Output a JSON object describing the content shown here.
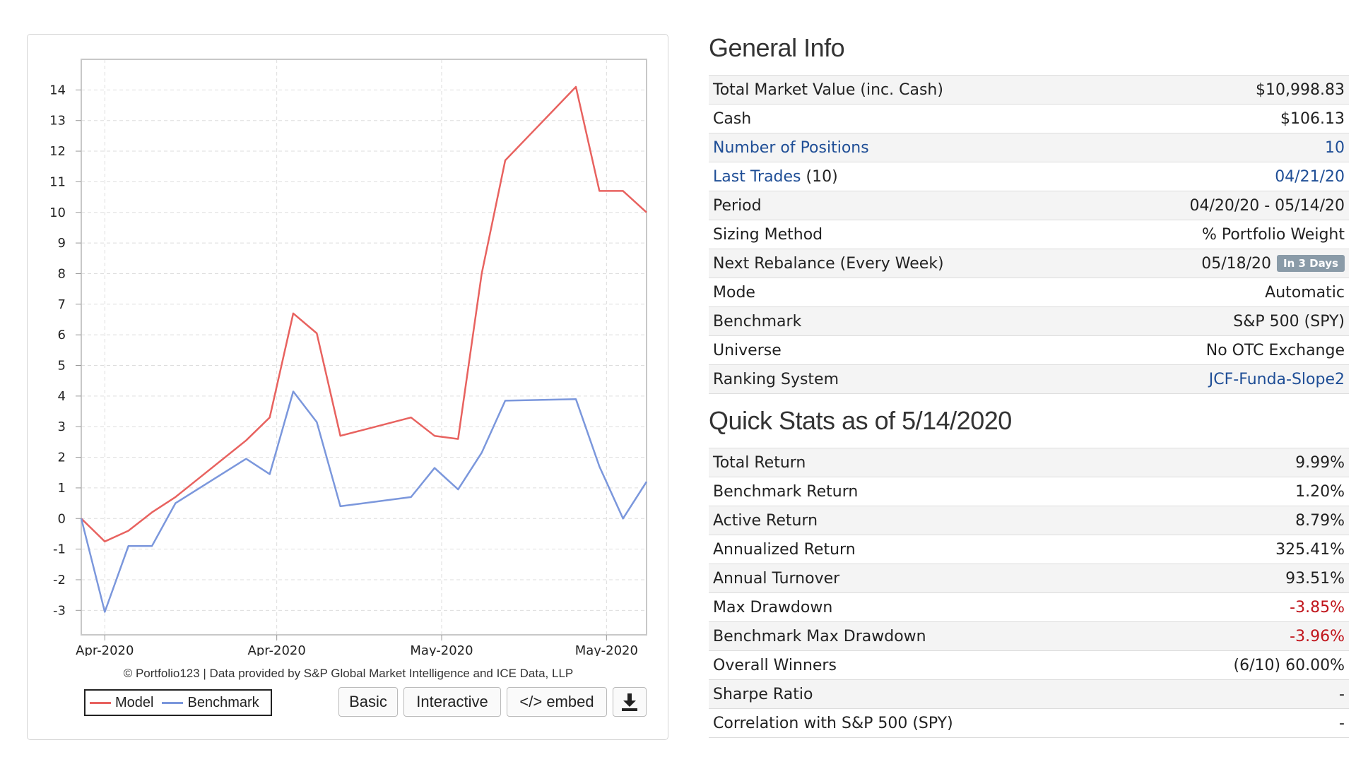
{
  "chart_data": {
    "type": "line",
    "x_labels": [
      "Apr-2020",
      "Apr-2020",
      "May-2020",
      "May-2020"
    ],
    "ylim": [
      -3.8,
      15
    ],
    "yticks": [
      14,
      13,
      12,
      11,
      10,
      9,
      8,
      7,
      6,
      5,
      4,
      3,
      2,
      1,
      0,
      -1,
      -2,
      -3
    ],
    "grid": true,
    "legend_placement": "bottom-left",
    "x_index": [
      0,
      1,
      2,
      3,
      4,
      5,
      6,
      7,
      8,
      9,
      10,
      11,
      12,
      13,
      14,
      15,
      16,
      17,
      18,
      19,
      20,
      21,
      22,
      23,
      24
    ],
    "series": [
      {
        "name": "Model",
        "color": "#e8625f",
        "values": [
          0.0,
          -0.75,
          -0.4,
          0.2,
          0.7,
          null,
          1.9,
          2.55,
          3.3,
          6.7,
          6.05,
          2.7,
          2.95,
          3.3,
          2.7,
          2.6,
          8.0,
          11.7,
          12.9,
          14.0,
          14.1,
          10.7,
          10.7,
          10.0,
          null
        ],
        "points": [
          [
            0,
            0.0
          ],
          [
            1,
            -0.75
          ],
          [
            2,
            -0.4
          ],
          [
            3,
            0.2
          ],
          [
            4,
            0.7
          ],
          [
            7,
            2.55
          ],
          [
            8,
            3.3
          ],
          [
            9,
            6.7
          ],
          [
            10,
            6.05
          ],
          [
            11,
            2.7
          ],
          [
            14,
            3.3
          ],
          [
            15,
            2.7
          ],
          [
            16,
            2.6
          ],
          [
            17,
            8.0
          ],
          [
            18,
            11.7
          ],
          [
            21,
            14.1
          ],
          [
            22,
            10.7
          ],
          [
            23,
            10.7
          ],
          [
            24,
            10.0
          ]
        ]
      },
      {
        "name": "Benchmark",
        "color": "#7b97dc",
        "points": [
          [
            0,
            0.0
          ],
          [
            1,
            -3.05
          ],
          [
            2,
            -0.9
          ],
          [
            3,
            -0.9
          ],
          [
            4,
            0.5
          ],
          [
            7,
            1.95
          ],
          [
            8,
            1.45
          ],
          [
            9,
            4.15
          ],
          [
            10,
            3.15
          ],
          [
            11,
            0.4
          ],
          [
            14,
            0.7
          ],
          [
            15,
            1.65
          ],
          [
            16,
            0.95
          ],
          [
            17,
            2.15
          ],
          [
            18,
            3.85
          ],
          [
            21,
            3.9
          ],
          [
            22,
            1.7
          ],
          [
            23,
            0.0
          ],
          [
            24,
            1.2
          ]
        ]
      }
    ]
  },
  "chart": {
    "credit": "© Portfolio123 | Data provided by S&P Global Market Intelligence and ICE Data, LLP",
    "legend": {
      "model": "Model",
      "benchmark": "Benchmark"
    },
    "buttons": {
      "basic": "Basic",
      "interactive": "Interactive",
      "embed": "</> embed"
    }
  },
  "general_info": {
    "title": "General Info",
    "rows": [
      {
        "label": "Total Market Value (inc. Cash)",
        "value": "$10,998.83"
      },
      {
        "label": "Cash",
        "value": "$106.13"
      },
      {
        "label": "Number of Positions",
        "value": "10"
      },
      {
        "label": "Last Trades",
        "label_suffix": " (10)",
        "value": "04/21/20"
      },
      {
        "label": "Period",
        "value": "04/20/20 - 05/14/20"
      },
      {
        "label": "Sizing Method",
        "value": "% Portfolio Weight"
      },
      {
        "label": "Next Rebalance (Every Week)",
        "value": "05/18/20",
        "badge": "In 3 Days"
      },
      {
        "label": "Mode",
        "value": "Automatic"
      },
      {
        "label": "Benchmark",
        "value": "S&P 500 (SPY)"
      },
      {
        "label": "Universe",
        "value": "No OTC Exchange"
      },
      {
        "label": "Ranking System",
        "value": "JCF-Funda-Slope2"
      }
    ]
  },
  "quick_stats": {
    "title": "Quick Stats as of 5/14/2020",
    "rows": [
      {
        "label": "Total Return",
        "value": "9.99%"
      },
      {
        "label": "Benchmark Return",
        "value": "1.20%"
      },
      {
        "label": "Active Return",
        "value": "8.79%"
      },
      {
        "label": "Annualized Return",
        "value": "325.41%"
      },
      {
        "label": "Annual Turnover",
        "value": "93.51%"
      },
      {
        "label": "Max Drawdown",
        "value": "-3.85%"
      },
      {
        "label": "Benchmark Max Drawdown",
        "value": "-3.96%"
      },
      {
        "label": "Overall Winners",
        "value": "(6/10) 60.00%"
      },
      {
        "label": "Sharpe Ratio",
        "value": "-"
      },
      {
        "label": "Correlation with S&P 500 (SPY)",
        "value": "-"
      }
    ]
  },
  "colors": {
    "link": "#1f4e96",
    "negative": "#c0141b",
    "badge": "#8a9ba8"
  }
}
